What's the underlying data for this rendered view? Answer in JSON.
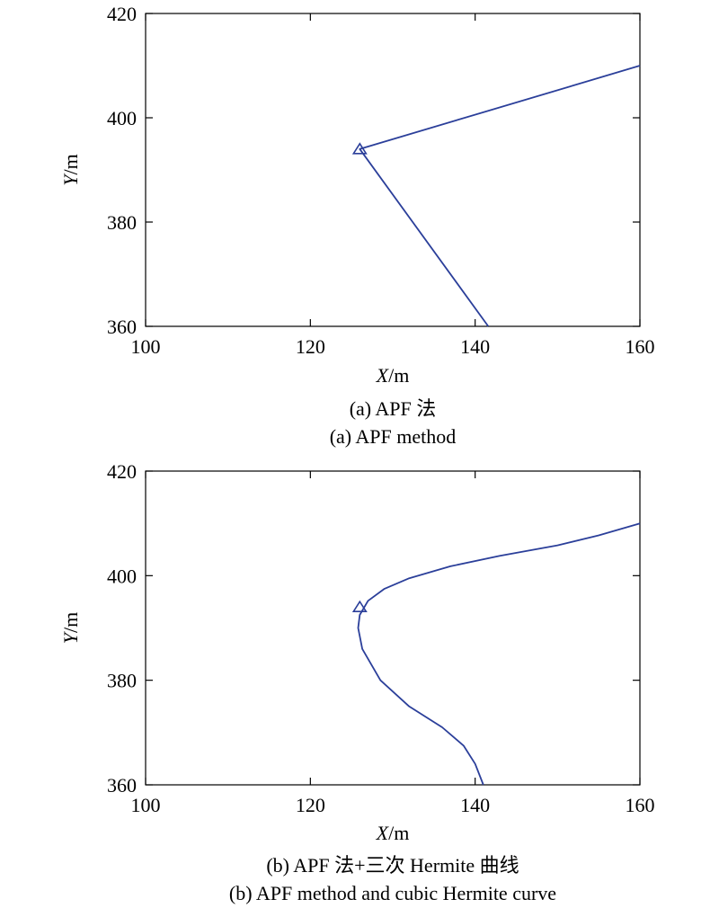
{
  "chart_data": [
    {
      "type": "line",
      "caption_cn": "(a) APF 法",
      "caption_en": "(a) APF method",
      "xlabel_var": "X",
      "xlabel_unit": "/m",
      "ylabel_var": "Y",
      "ylabel_unit": "/m",
      "xlim": [
        100,
        160
      ],
      "ylim": [
        360,
        420
      ],
      "xticks": [
        100,
        120,
        140,
        160
      ],
      "yticks": [
        360,
        380,
        400,
        420
      ],
      "xtick_labels": [
        "100",
        "120",
        "140",
        "160"
      ],
      "ytick_labels": [
        "360",
        "380",
        "400",
        "420"
      ],
      "line_color": "#2b3f9a",
      "grid": false,
      "series": [
        {
          "x": [
            141.6,
            126.0,
            160.0
          ],
          "y": [
            360.0,
            394.0,
            410.0
          ]
        }
      ],
      "marker": {
        "shape": "triangle",
        "x": 126.0,
        "y": 394.0
      }
    },
    {
      "type": "line",
      "caption_cn": "(b) APF 法+三次 Hermite 曲线",
      "caption_en": "(b) APF method and cubic Hermite curve",
      "xlabel_var": "X",
      "xlabel_unit": "/m",
      "ylabel_var": "Y",
      "ylabel_unit": "/m",
      "xlim": [
        100,
        160
      ],
      "ylim": [
        360,
        420
      ],
      "xticks": [
        100,
        120,
        140,
        160
      ],
      "yticks": [
        360,
        380,
        400,
        420
      ],
      "xtick_labels": [
        "100",
        "120",
        "140",
        "160"
      ],
      "ytick_labels": [
        "360",
        "380",
        "400",
        "420"
      ],
      "line_color": "#2b3f9a",
      "grid": false,
      "series": [
        {
          "x": [
            141.0,
            140.0,
            138.6,
            136.0,
            132.0,
            128.5,
            126.3,
            125.8,
            126.0,
            127.0,
            129.0,
            132.0,
            137.0,
            143.0,
            150.0,
            155.0,
            160.0
          ],
          "y": [
            360.0,
            364.0,
            367.5,
            371.0,
            375.0,
            380.0,
            386.0,
            390.0,
            392.5,
            395.2,
            397.5,
            399.5,
            401.8,
            403.8,
            405.8,
            407.7,
            410.0
          ]
        }
      ],
      "marker": {
        "shape": "triangle",
        "x": 126.0,
        "y": 394.0
      }
    }
  ]
}
